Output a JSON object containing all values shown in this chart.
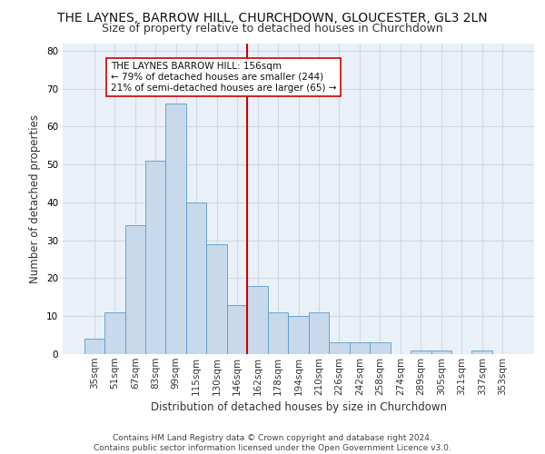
{
  "title": "THE LAYNES, BARROW HILL, CHURCHDOWN, GLOUCESTER, GL3 2LN",
  "subtitle": "Size of property relative to detached houses in Churchdown",
  "xlabel": "Distribution of detached houses by size in Churchdown",
  "ylabel": "Number of detached properties",
  "categories": [
    "35sqm",
    "51sqm",
    "67sqm",
    "83sqm",
    "99sqm",
    "115sqm",
    "130sqm",
    "146sqm",
    "162sqm",
    "178sqm",
    "194sqm",
    "210sqm",
    "226sqm",
    "242sqm",
    "258sqm",
    "274sqm",
    "289sqm",
    "305sqm",
    "321sqm",
    "337sqm",
    "353sqm"
  ],
  "values": [
    4,
    11,
    34,
    51,
    66,
    40,
    29,
    13,
    18,
    11,
    10,
    11,
    3,
    3,
    3,
    0,
    1,
    1,
    0,
    1,
    0
  ],
  "bar_color": "#c8d9eb",
  "bar_edge_color": "#5a9ac8",
  "vline_index": 8,
  "vline_color": "#cc0000",
  "annotation_text": "THE LAYNES BARROW HILL: 156sqm\n← 79% of detached houses are smaller (244)\n21% of semi-detached houses are larger (65) →",
  "annotation_box_color": "#ffffff",
  "annotation_box_edge": "#cc0000",
  "ylim": [
    0,
    82
  ],
  "yticks": [
    0,
    10,
    20,
    30,
    40,
    50,
    60,
    70,
    80
  ],
  "grid_color": "#d0d8e8",
  "background_color": "#eaf0f8",
  "footer": "Contains HM Land Registry data © Crown copyright and database right 2024.\nContains public sector information licensed under the Open Government Licence v3.0.",
  "title_fontsize": 10,
  "subtitle_fontsize": 9,
  "label_fontsize": 8.5,
  "tick_fontsize": 7.5,
  "annotation_fontsize": 7.5,
  "footer_fontsize": 6.5
}
